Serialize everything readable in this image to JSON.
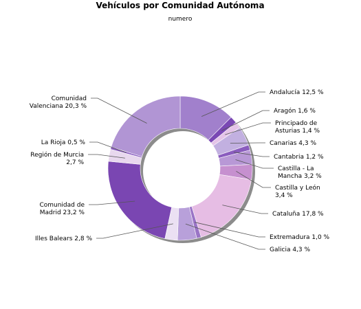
{
  "chart_data": {
    "type": "pie",
    "variant": "donut",
    "title": "Vehículos por Comunidad Autónoma",
    "subtitle": "numero",
    "slices": [
      {
        "name": "Andalucía",
        "value": 12.5,
        "label": "Andalucía 12,5 %",
        "color": "#a180cc"
      },
      {
        "name": "Aragón",
        "value": 1.6,
        "label": "Aragón 1,6 %",
        "color": "#7a48b4"
      },
      {
        "name": "Principado de Asturias",
        "value": 1.4,
        "label": "Principado de Asturias 1,4 %",
        "color": "#e4c4e8"
      },
      {
        "name": "Canarias",
        "value": 4.3,
        "label": "Canarias 4,3 %",
        "color": "#c2b0e0"
      },
      {
        "name": "Cantabria",
        "value": 1.2,
        "label": "Cantabria 1,2 %",
        "color": "#8a5cbe"
      },
      {
        "name": "Castilla - La Mancha",
        "value": 3.2,
        "label": "Castilla - La Mancha 3,2 %",
        "color": "#b898d6"
      },
      {
        "name": "Castilla y León",
        "value": 3.4,
        "label": "Castilla y León 3,4 %",
        "color": "#c690cf"
      },
      {
        "name": "Cataluña",
        "value": 17.8,
        "label": "Cataluña 17,8 %",
        "color": "#e6bde4"
      },
      {
        "name": "Extremadura",
        "value": 1.0,
        "label": "Extremadura 1,0 %",
        "color": "#9a74c6"
      },
      {
        "name": "Galicia",
        "value": 4.3,
        "label": "Galicia 4,3 %",
        "color": "#b8a0da"
      },
      {
        "name": "Illes Balears",
        "value": 2.8,
        "label": "Illes Balears 2,8 %",
        "color": "#ebe0f3"
      },
      {
        "name": "Comunidad de Madrid",
        "value": 23.2,
        "label": "Comunidad de Madrid 23,2 %",
        "color": "#7a46b2"
      },
      {
        "name": "Región de Murcia",
        "value": 2.7,
        "label": "Región de Murcia 2,7 %",
        "color": "#e8d8ee"
      },
      {
        "name": "La Rioja",
        "value": 0.5,
        "label": "La Rioja 0,5 %",
        "color": "#8a5cc0"
      },
      {
        "name": "Comunidad Valenciana",
        "value": 20.3,
        "label": "Comunidad Valenciana 20,3 %",
        "color": "#b195d4"
      }
    ]
  }
}
